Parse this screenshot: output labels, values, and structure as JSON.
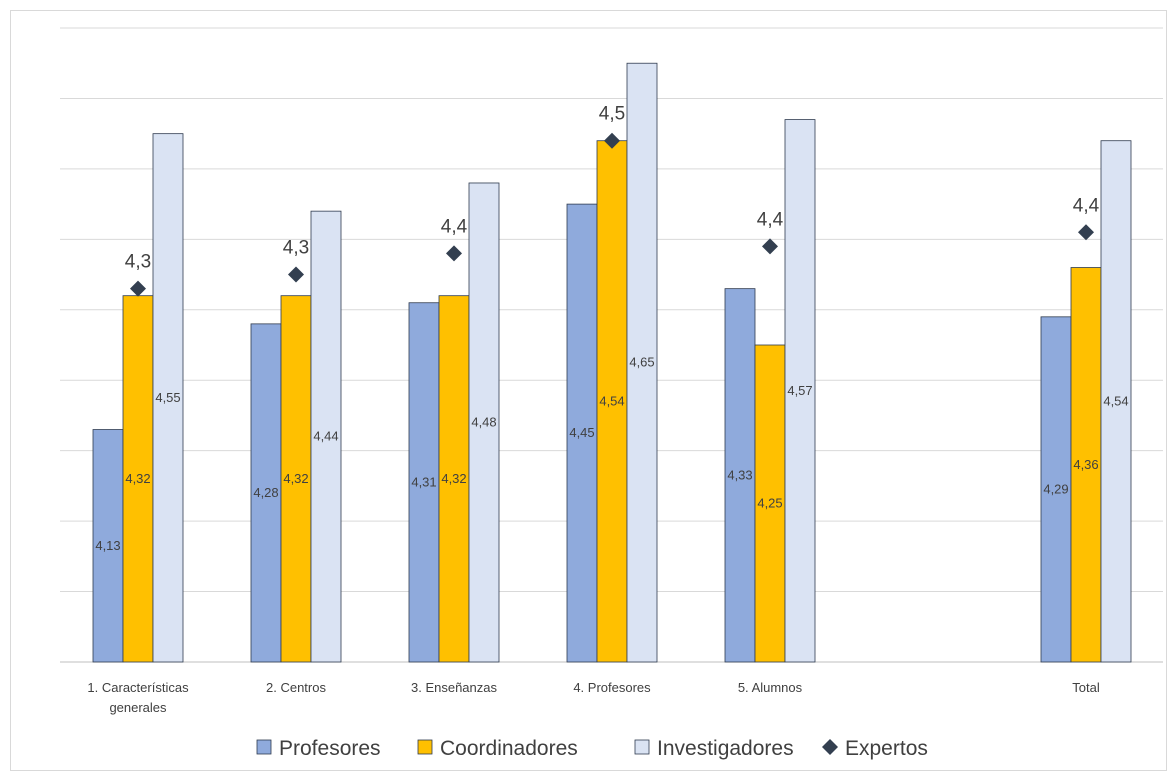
{
  "chart_data": {
    "type": "bar",
    "categories": [
      "1. Características generales",
      "2. Centros",
      "3. Enseñanzas",
      "4. Profesores",
      "5. Alumnos",
      "Total"
    ],
    "category_lines": [
      [
        "1. Características",
        "generales"
      ],
      [
        "2. Centros"
      ],
      [
        "3. Enseñanzas"
      ],
      [
        "4. Profesores"
      ],
      [
        "5. Alumnos"
      ],
      [
        "Total"
      ]
    ],
    "series": [
      {
        "name": "Profesores",
        "values": [
          4.13,
          4.28,
          4.31,
          4.45,
          4.33,
          4.29
        ],
        "labels": [
          "4,13",
          "4,28",
          "4,31",
          "4,45",
          "4,33",
          "4,29"
        ],
        "color": "#8faadc"
      },
      {
        "name": "Coordinadores",
        "values": [
          4.32,
          4.32,
          4.32,
          4.54,
          4.25,
          4.36
        ],
        "labels": [
          "4,32",
          "4,32",
          "4,32",
          "4,54",
          "4,25",
          "4,36"
        ],
        "color": "#ffc000"
      },
      {
        "name": "Investigadores",
        "values": [
          4.55,
          4.44,
          4.48,
          4.65,
          4.57,
          4.54
        ],
        "labels": [
          "4,55",
          "4,44",
          "4,48",
          "4,65",
          "4,57",
          "4,54"
        ],
        "color": "#dae3f3"
      }
    ],
    "markers": {
      "name": "Expertos",
      "values": [
        4.33,
        4.35,
        4.38,
        4.54,
        4.39,
        4.41
      ],
      "labels": [
        "4,3",
        "4,3",
        "4,4",
        "4,5",
        "4,4",
        "4,4"
      ],
      "color": "#333f50",
      "shape": "diamond"
    },
    "ylim": [
      3.8,
      4.7
    ],
    "gridlines": true,
    "y_tick_labels_shown": false,
    "legend_position": "bottom"
  }
}
